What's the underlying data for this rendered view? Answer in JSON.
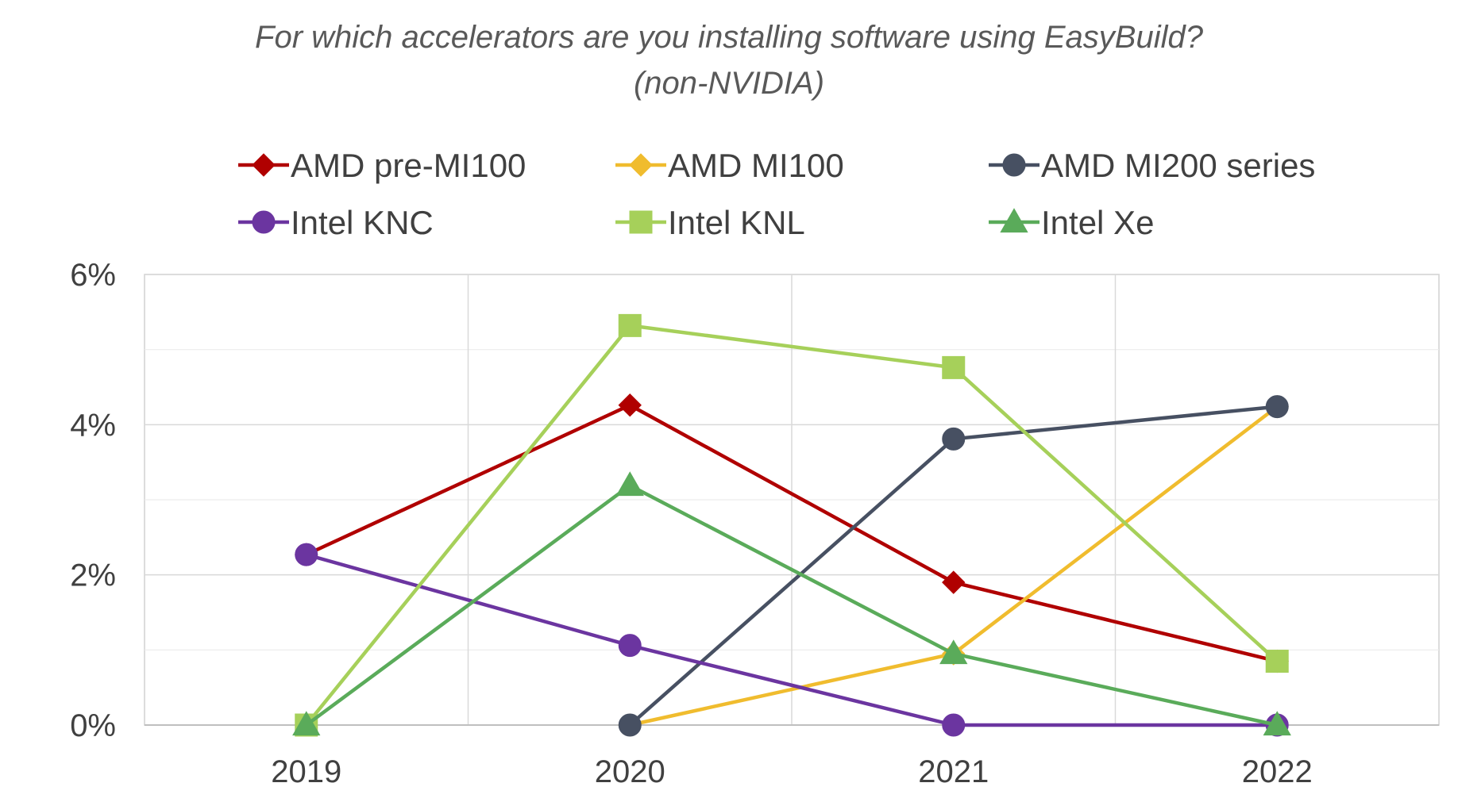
{
  "chart_data": {
    "type": "line",
    "title": "For which accelerators are you installing software using EasyBuild?",
    "subtitle": "(non-NVIDIA)",
    "xlabel": "",
    "ylabel": "",
    "categories": [
      "2019",
      "2020",
      "2021",
      "2022"
    ],
    "y_ticks": [
      "0%",
      "2%",
      "4%",
      "6%"
    ],
    "ylim": [
      0,
      6
    ],
    "grid": true,
    "legend_position": "top",
    "series": [
      {
        "name": "AMD pre-MI100",
        "color": "#b00000",
        "marker": "diamond",
        "values": [
          2.27,
          4.26,
          1.9,
          0.85
        ]
      },
      {
        "name": "AMD MI100",
        "color": "#f0bc2e",
        "marker": "diamond",
        "values": [
          null,
          0.0,
          0.95,
          4.24
        ]
      },
      {
        "name": "AMD MI200 series",
        "color": "#475062",
        "marker": "circle",
        "values": [
          null,
          0.0,
          3.81,
          4.24
        ]
      },
      {
        "name": "Intel KNC",
        "color": "#6b35a0",
        "marker": "circle",
        "values": [
          2.27,
          1.06,
          0.0,
          0.0
        ]
      },
      {
        "name": "Intel KNL",
        "color": "#a6d05a",
        "marker": "square",
        "values": [
          0.0,
          5.32,
          4.76,
          0.85
        ]
      },
      {
        "name": "Intel Xe",
        "color": "#5aab5a",
        "marker": "triangle",
        "values": [
          0.0,
          3.19,
          0.95,
          0.0
        ]
      }
    ]
  }
}
